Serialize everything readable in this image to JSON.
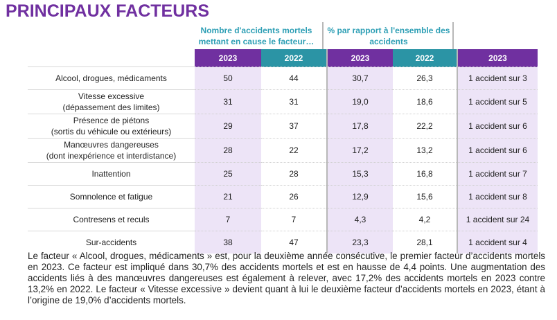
{
  "title": "PRINCIPAUX FACTEURS",
  "group_headers": {
    "count": "Nombre d'accidents mortels mettant en cause le facteur…",
    "percent": "% par rapport à l'ensemble des accidents"
  },
  "columns": [
    "2023",
    "2022",
    "2023",
    "2022",
    "2023"
  ],
  "colors": {
    "purple": "#7030a0",
    "teal": "#2b94a5",
    "header_text": "#2e9fb5",
    "shade": "#ede4f7"
  },
  "rows": [
    {
      "label1": "Alcool, drogues, médicaments",
      "label2": "",
      "n2023": "50",
      "n2022": "44",
      "p2023": "30,7",
      "p2022": "26,3",
      "ratio": "1 accident sur 3"
    },
    {
      "label1": "Vitesse excessive",
      "label2": "(dépassement des limites)",
      "n2023": "31",
      "n2022": "31",
      "p2023": "19,0",
      "p2022": "18,6",
      "ratio": "1 accident sur 5"
    },
    {
      "label1": "Présence de piétons",
      "label2": "(sortis du véhicule ou extérieurs)",
      "n2023": "29",
      "n2022": "37",
      "p2023": "17,8",
      "p2022": "22,2",
      "ratio": "1 accident sur 6"
    },
    {
      "label1": "Manœuvres dangereuses",
      "label2": "(dont inexpérience et interdistance)",
      "n2023": "28",
      "n2022": "22",
      "p2023": "17,2",
      "p2022": "13,2",
      "ratio": "1 accident sur 6"
    },
    {
      "label1": "Inattention",
      "label2": "",
      "n2023": "25",
      "n2022": "28",
      "p2023": "15,3",
      "p2022": "16,8",
      "ratio": "1 accident sur 7"
    },
    {
      "label1": "Somnolence et fatigue",
      "label2": "",
      "n2023": "21",
      "n2022": "26",
      "p2023": "12,9",
      "p2022": "15,6",
      "ratio": "1 accident sur 8"
    },
    {
      "label1": "Contresens et reculs",
      "label2": "",
      "n2023": "7",
      "n2022": "7",
      "p2023": "4,3",
      "p2022": "4,2",
      "ratio": "1 accident sur 24"
    },
    {
      "label1": "Sur-accidents",
      "label2": "",
      "n2023": "38",
      "n2022": "47",
      "p2023": "23,3",
      "p2022": "28,1",
      "ratio": "1 accident sur 4"
    }
  ],
  "paragraph": "Le facteur « Alcool, drogues, médicaments » est, pour la deuxième année consécutive, le premier facteur d’accidents mortels en 2023. Ce facteur est impliqué dans 30,7% des accidents mortels et est en hausse de 4,4 points. Une augmentation des accidents liés à des manœuvres dangereuses est également à relever, avec 17,2% des accidents mortels en 2023 contre 13,2% en 2022. Le facteur « Vitesse excessive » devient quant à lui le deuxième facteur d’accidents mortels en 2023, étant à l’origine de 19,0% d’accidents mortels."
}
